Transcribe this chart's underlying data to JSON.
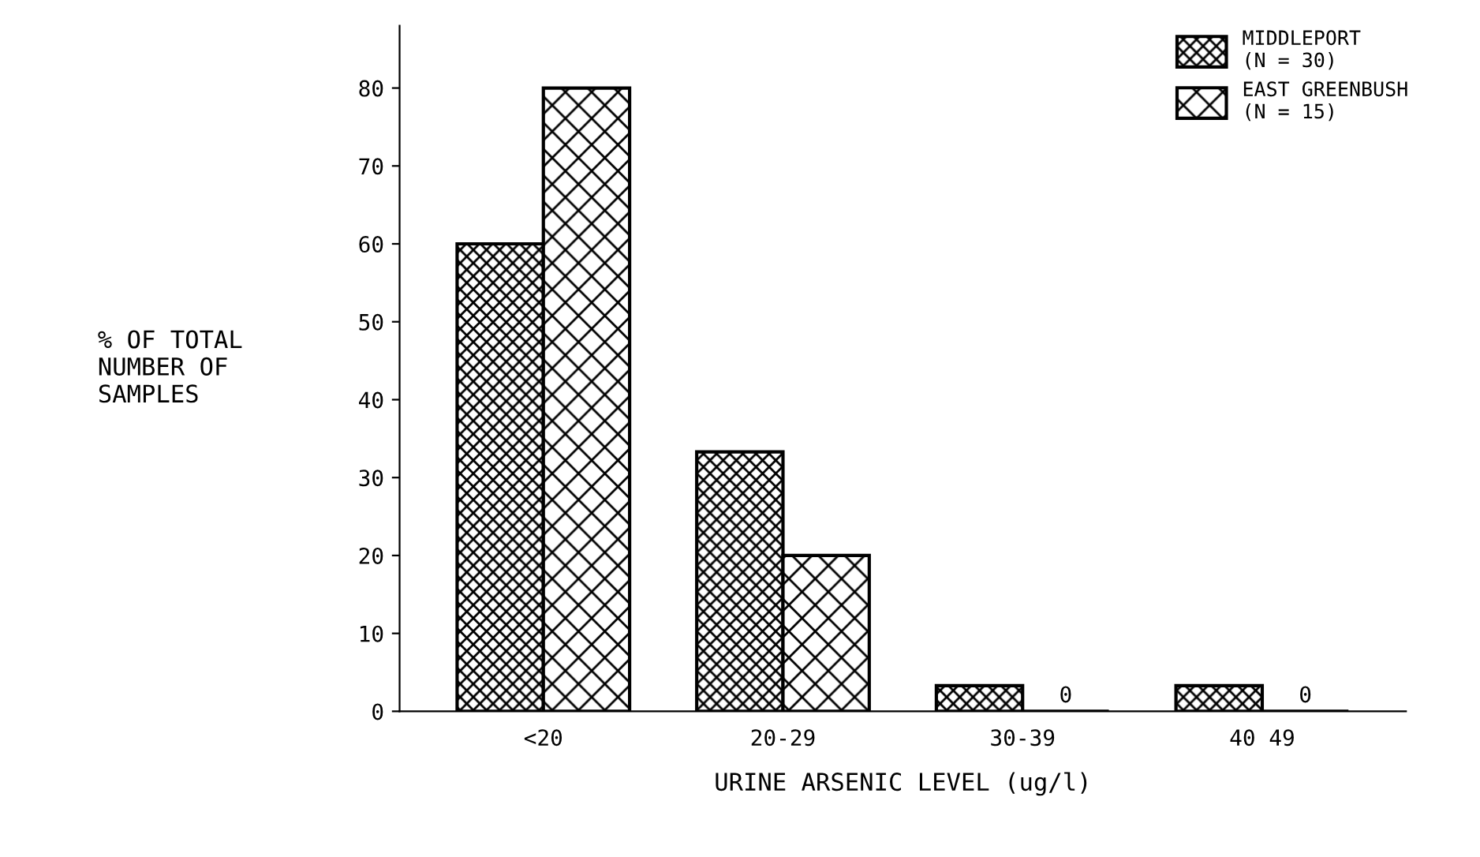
{
  "chart_data": {
    "type": "bar",
    "xlabel": "URINE ARSENIC LEVEL (ug/l)",
    "ylabel": "% OF TOTAL\nNUMBER OF\nSAMPLES",
    "categories": [
      "<20",
      "20-29",
      "30-39",
      "40 49"
    ],
    "series": [
      {
        "name": "MIDDLEPORT\n(N = 30)",
        "color": "#000000",
        "values": [
          60,
          33.3,
          3.3,
          3.3
        ]
      },
      {
        "name": "EAST GREENBUSH\n(N = 15)",
        "color": "#000000",
        "values": [
          80,
          20,
          0,
          0
        ],
        "value_labels": [
          null,
          null,
          "0",
          "0"
        ]
      }
    ],
    "ylim": [
      0,
      88
    ],
    "yticks": [
      0,
      10,
      20,
      30,
      40,
      50,
      60,
      70,
      80
    ],
    "grid": false,
    "legend": "top right"
  }
}
